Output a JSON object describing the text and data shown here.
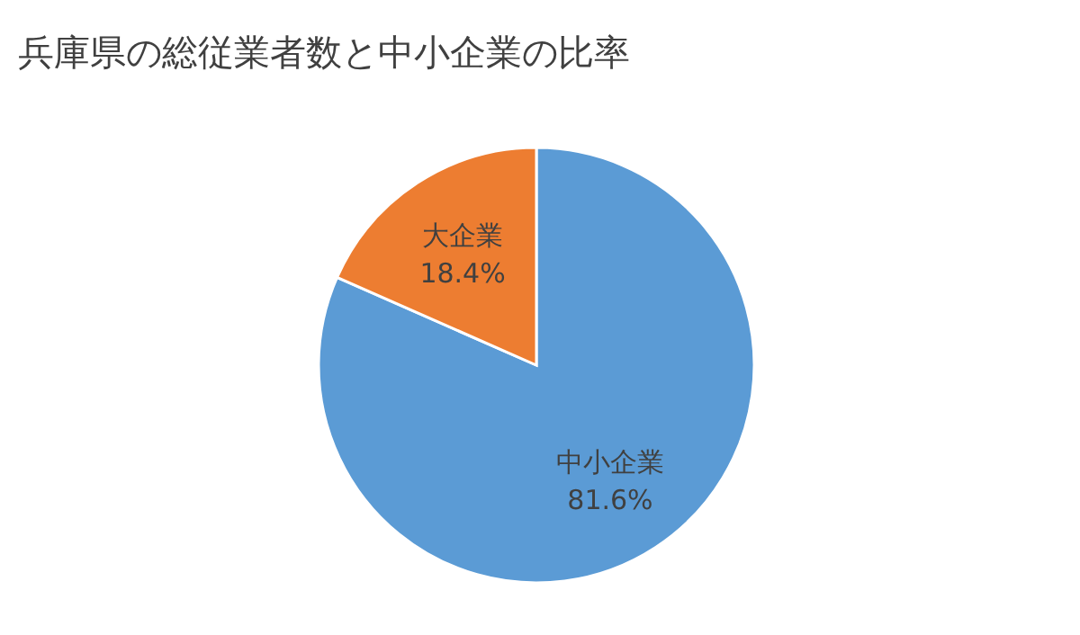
{
  "chart_data": {
    "type": "pie",
    "title": "兵庫県の総従業者数と中小企業の比率",
    "categories": [
      "中小企業",
      "大企業"
    ],
    "values": [
      81.6,
      18.4
    ],
    "colors": [
      "#5b9bd5",
      "#ed7d31"
    ],
    "value_labels": [
      "81.6%",
      "18.4%"
    ]
  }
}
